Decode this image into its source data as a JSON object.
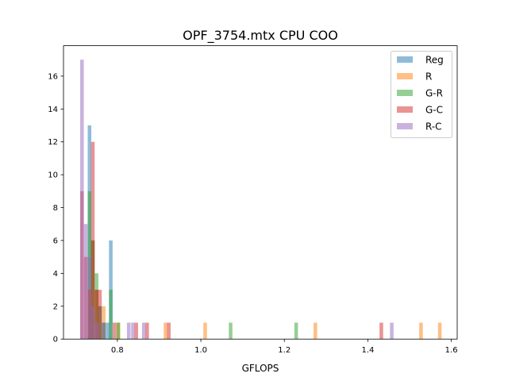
{
  "chart_data": {
    "type": "histogram",
    "title": "OPF_3754.mtx CPU COO",
    "xlabel": "GFLOPS",
    "ylabel": "",
    "xlim": [
      0.671,
      1.614
    ],
    "ylim": [
      0,
      17.85
    ],
    "xticks": [
      0.8,
      1.0,
      1.2,
      1.4,
      1.6
    ],
    "xtick_labels": [
      "0.8",
      "1.0",
      "1.2",
      "1.4",
      "1.6"
    ],
    "yticks": [
      0,
      2,
      4,
      6,
      8,
      10,
      12,
      14,
      16
    ],
    "ytick_labels": [
      "0",
      "2",
      "4",
      "6",
      "8",
      "10",
      "12",
      "14",
      "16"
    ],
    "bar_alpha": 0.5,
    "legend_position": "upper right",
    "grid": false,
    "series": [
      {
        "name": "Reg",
        "color": "#1f77b4",
        "bin_width": 0.0086,
        "bins": [
          {
            "x": 0.729,
            "count": 13
          },
          {
            "x": 0.737,
            "count": 6
          },
          {
            "x": 0.746,
            "count": 3
          },
          {
            "x": 0.754,
            "count": 2
          },
          {
            "x": 0.763,
            "count": 1
          },
          {
            "x": 0.772,
            "count": 1
          },
          {
            "x": 0.78,
            "count": 6
          }
        ]
      },
      {
        "name": "R",
        "color": "#ff7f0e",
        "bin_width": 0.0086,
        "bins": [
          {
            "x": 0.729,
            "count": 3
          },
          {
            "x": 0.737,
            "count": 6
          },
          {
            "x": 0.746,
            "count": 3
          },
          {
            "x": 0.763,
            "count": 2
          },
          {
            "x": 0.798,
            "count": 1
          },
          {
            "x": 0.911,
            "count": 1
          },
          {
            "x": 1.006,
            "count": 1
          },
          {
            "x": 1.27,
            "count": 1
          },
          {
            "x": 1.523,
            "count": 1
          },
          {
            "x": 1.568,
            "count": 1
          }
        ]
      },
      {
        "name": "G-R",
        "color": "#2ca02c",
        "bin_width": 0.0086,
        "bins": [
          {
            "x": 0.729,
            "count": 9
          },
          {
            "x": 0.737,
            "count": 6
          },
          {
            "x": 0.746,
            "count": 4
          },
          {
            "x": 0.754,
            "count": 2
          },
          {
            "x": 0.763,
            "count": 1
          },
          {
            "x": 0.78,
            "count": 3
          },
          {
            "x": 0.798,
            "count": 1
          },
          {
            "x": 1.067,
            "count": 1
          },
          {
            "x": 1.224,
            "count": 1
          }
        ]
      },
      {
        "name": "G-C",
        "color": "#d62728",
        "bin_width": 0.0086,
        "bins": [
          {
            "x": 0.711,
            "count": 9
          },
          {
            "x": 0.72,
            "count": 5
          },
          {
            "x": 0.729,
            "count": 3
          },
          {
            "x": 0.737,
            "count": 12
          },
          {
            "x": 0.746,
            "count": 3
          },
          {
            "x": 0.754,
            "count": 3
          },
          {
            "x": 0.789,
            "count": 1
          },
          {
            "x": 0.841,
            "count": 1
          },
          {
            "x": 0.867,
            "count": 1
          },
          {
            "x": 0.919,
            "count": 1
          },
          {
            "x": 1.428,
            "count": 1
          }
        ]
      },
      {
        "name": "R-C",
        "color": "#9467bd",
        "bin_width": 0.0086,
        "bins": [
          {
            "x": 0.711,
            "count": 17
          },
          {
            "x": 0.72,
            "count": 7
          },
          {
            "x": 0.729,
            "count": 5
          },
          {
            "x": 0.737,
            "count": 2
          },
          {
            "x": 0.746,
            "count": 1
          },
          {
            "x": 0.763,
            "count": 1
          },
          {
            "x": 0.823,
            "count": 1
          },
          {
            "x": 0.833,
            "count": 1
          },
          {
            "x": 0.859,
            "count": 1
          },
          {
            "x": 1.453,
            "count": 1
          }
        ]
      }
    ]
  }
}
